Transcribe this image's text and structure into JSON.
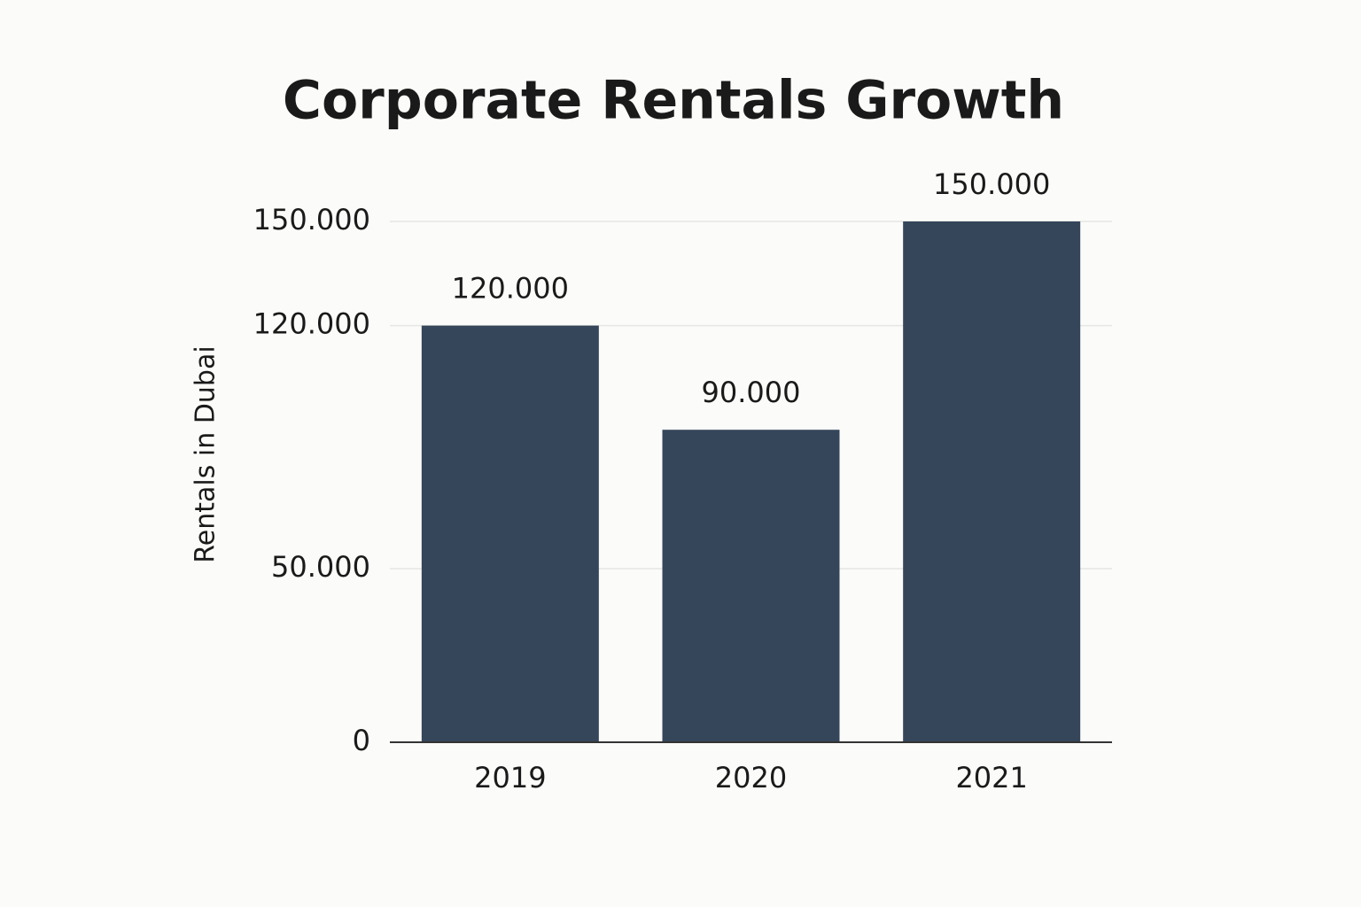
{
  "chart_data": {
    "type": "bar",
    "title": "Corporate Rentals Growth",
    "y_label": "Rentals in Dubai",
    "categories": [
      "2019",
      "2020",
      "2021"
    ],
    "values": [
      120000,
      90000,
      150000
    ],
    "value_labels": [
      "120.000",
      "90.000",
      "150.000"
    ],
    "color": "#36465a",
    "ylim": [
      0,
      150000
    ],
    "yticks": [
      0,
      {
        "value": 50000,
        "label": "50.000"
      },
      {
        "value": 120000,
        "label": "120.000"
      },
      {
        "value": 150000,
        "label": "150.000"
      }
    ],
    "grid": true
  }
}
